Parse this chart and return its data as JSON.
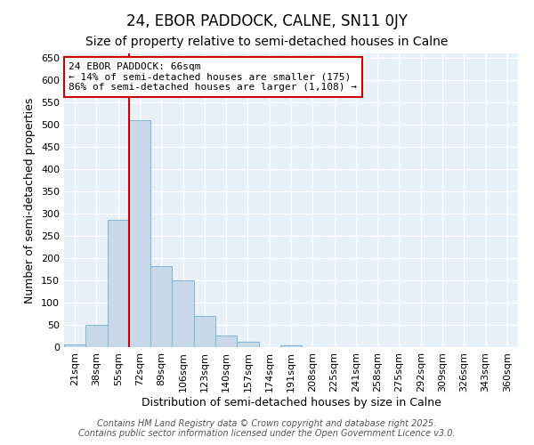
{
  "title": "24, EBOR PADDOCK, CALNE, SN11 0JY",
  "subtitle": "Size of property relative to semi-detached houses in Calne",
  "xlabel": "Distribution of semi-detached houses by size in Calne",
  "ylabel": "Number of semi-detached properties",
  "categories": [
    "21sqm",
    "38sqm",
    "55sqm",
    "72sqm",
    "89sqm",
    "106sqm",
    "123sqm",
    "140sqm",
    "157sqm",
    "174sqm",
    "191sqm",
    "208sqm",
    "225sqm",
    "241sqm",
    "258sqm",
    "275sqm",
    "292sqm",
    "309sqm",
    "326sqm",
    "343sqm",
    "360sqm"
  ],
  "values": [
    7,
    50,
    287,
    510,
    183,
    150,
    70,
    27,
    13,
    0,
    4,
    0,
    0,
    0,
    0,
    0,
    0,
    0,
    0,
    0,
    0
  ],
  "bar_color": "#c8daea",
  "bar_edge_color": "#8bb8d4",
  "red_line_x": 2.5,
  "annotation_text": "24 EBOR PADDOCK: 66sqm\n← 14% of semi-detached houses are smaller (175)\n86% of semi-detached houses are larger (1,108) →",
  "annotation_box_facecolor": "#ffffff",
  "annotation_box_edgecolor": "#cc0000",
  "red_line_color": "#cc0000",
  "footer1": "Contains HM Land Registry data © Crown copyright and database right 2025.",
  "footer2": "Contains public sector information licensed under the Open Government Licence v3.0.",
  "ylim": [
    0,
    660
  ],
  "yticks": [
    0,
    50,
    100,
    150,
    200,
    250,
    300,
    350,
    400,
    450,
    500,
    550,
    600,
    650
  ],
  "fig_bg_color": "#ffffff",
  "plot_bg_color": "#e8f0f8",
  "grid_color": "#ffffff",
  "title_fontsize": 12,
  "subtitle_fontsize": 10,
  "axis_label_fontsize": 9,
  "tick_fontsize": 8,
  "annotation_fontsize": 8,
  "footer_fontsize": 7
}
